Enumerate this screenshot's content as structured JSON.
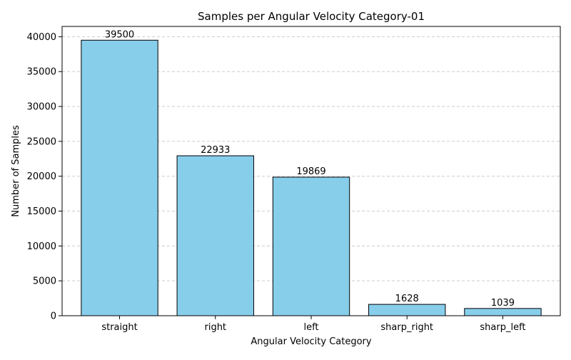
{
  "chart_data": {
    "type": "bar",
    "title": "Samples per Angular Velocity Category-01",
    "xlabel": "Angular Velocity Category",
    "ylabel": "Number of Samples",
    "categories": [
      "straight",
      "right",
      "left",
      "sharp_right",
      "sharp_left"
    ],
    "values": [
      39500,
      22933,
      19869,
      1628,
      1039
    ],
    "data_labels": [
      "39500",
      "22933",
      "19869",
      "1628",
      "1039"
    ],
    "ylim": [
      0,
      41475
    ],
    "yticks": [
      0,
      5000,
      10000,
      15000,
      20000,
      25000,
      30000,
      35000,
      40000
    ],
    "ytick_labels": [
      "0",
      "5000",
      "10000",
      "15000",
      "20000",
      "25000",
      "30000",
      "35000",
      "40000"
    ],
    "grid": "y-dashed",
    "bar_color": "#87ceeb",
    "bar_edge_color": "#000000",
    "grid_color": "#cccccc"
  }
}
